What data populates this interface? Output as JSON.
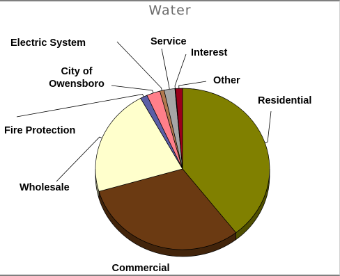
{
  "chart_data": {
    "type": "pie",
    "title": "Water",
    "slices": [
      {
        "label": "Residential",
        "value": 39.5,
        "color": "#808000"
      },
      {
        "label": "Commercial",
        "value": 31.0,
        "color": "#6b3a12"
      },
      {
        "label": "Wholesale",
        "value": 21.5,
        "color": "#ffffcc"
      },
      {
        "label": "Fire Protection",
        "value": 1.3,
        "color": "#5b5ea6"
      },
      {
        "label": "City of Owensboro",
        "value": 2.5,
        "color": "#ff7f8a"
      },
      {
        "label": "Electric System",
        "value": 0.8,
        "color": "#b2794e"
      },
      {
        "label": "Service",
        "value": 2.0,
        "color": "#a6a6a6"
      },
      {
        "label": "Interest",
        "value": 0.1,
        "color": "#1e2a5e"
      },
      {
        "label": "Other",
        "value": 1.3,
        "color": "#99001a"
      }
    ],
    "label_lines": {
      "City of Owensboro": [
        "City of",
        "Owensboro"
      ]
    },
    "legend": "none"
  }
}
